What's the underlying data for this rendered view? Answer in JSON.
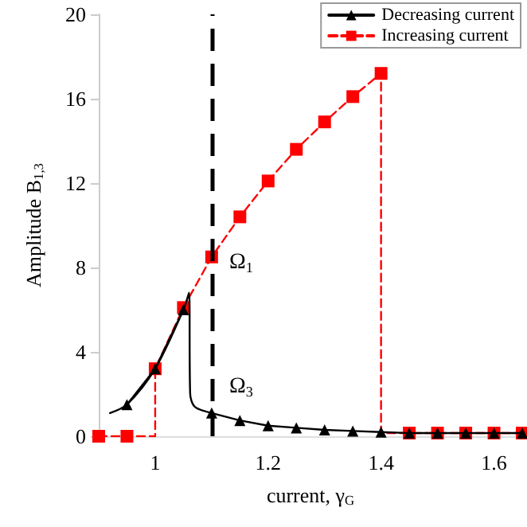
{
  "chart_data": {
    "type": "line",
    "xlabel": "current, γ$_{G}$",
    "ylabel": "Amplitude B$_{1,3}$",
    "xlim": [
      0.9,
      1.65
    ],
    "xticks": [
      1,
      1.2,
      1.4,
      1.6
    ],
    "ylim": [
      0,
      20
    ],
    "yticks": [
      0,
      4,
      8,
      12,
      16,
      20
    ],
    "grid": false,
    "legend": "top right",
    "series": [
      {
        "name": "Decreasing current",
        "color": "#000000",
        "marker": "triangle",
        "line_style": "solid",
        "x": [
          0.95,
          1.0,
          1.05,
          1.075,
          1.1,
          1.15,
          1.2,
          1.25,
          1.3,
          1.35,
          1.4,
          1.45,
          1.5,
          1.55,
          1.6,
          1.65
        ],
        "values": [
          1.5,
          3.2,
          6.0,
          null,
          1.1,
          0.75,
          0.5,
          0.4,
          0.3,
          0.25,
          0.2,
          0.15,
          0.15,
          0.15,
          0.15,
          0.15
        ]
      },
      {
        "name": "Increasing current",
        "color": "#ff0000",
        "marker": "square",
        "line_style": "dashed",
        "x": [
          0.9,
          0.95,
          1.0,
          1.0,
          1.05,
          1.1,
          1.15,
          1.2,
          1.25,
          1.3,
          1.35,
          1.4,
          1.4,
          1.45,
          1.5,
          1.55,
          1.6,
          1.65
        ],
        "values": [
          0,
          0,
          0,
          3.2,
          6.1,
          8.5,
          10.4,
          12.1,
          13.6,
          14.9,
          16.1,
          17.2,
          0.15,
          0.15,
          0.15,
          0.15,
          0.15,
          0.15
        ]
      },
      {
        "color": "#000000",
        "marker": "none",
        "line_style": "solid",
        "x": [
          0.92,
          0.95,
          1.0,
          1.05,
          1.06,
          1.062,
          1.07,
          1.1
        ],
        "values": [
          1.1,
          1.5,
          3.2,
          6.0,
          6.8,
          2.0,
          1.4,
          1.1
        ]
      }
    ],
    "ref_lines": [
      {
        "axis": "x",
        "value": 1.1,
        "color": "#000000",
        "line_style": "dashed"
      }
    ],
    "annotations": [
      "Ω$_{1}$",
      "Ω$_{3}$"
    ]
  }
}
